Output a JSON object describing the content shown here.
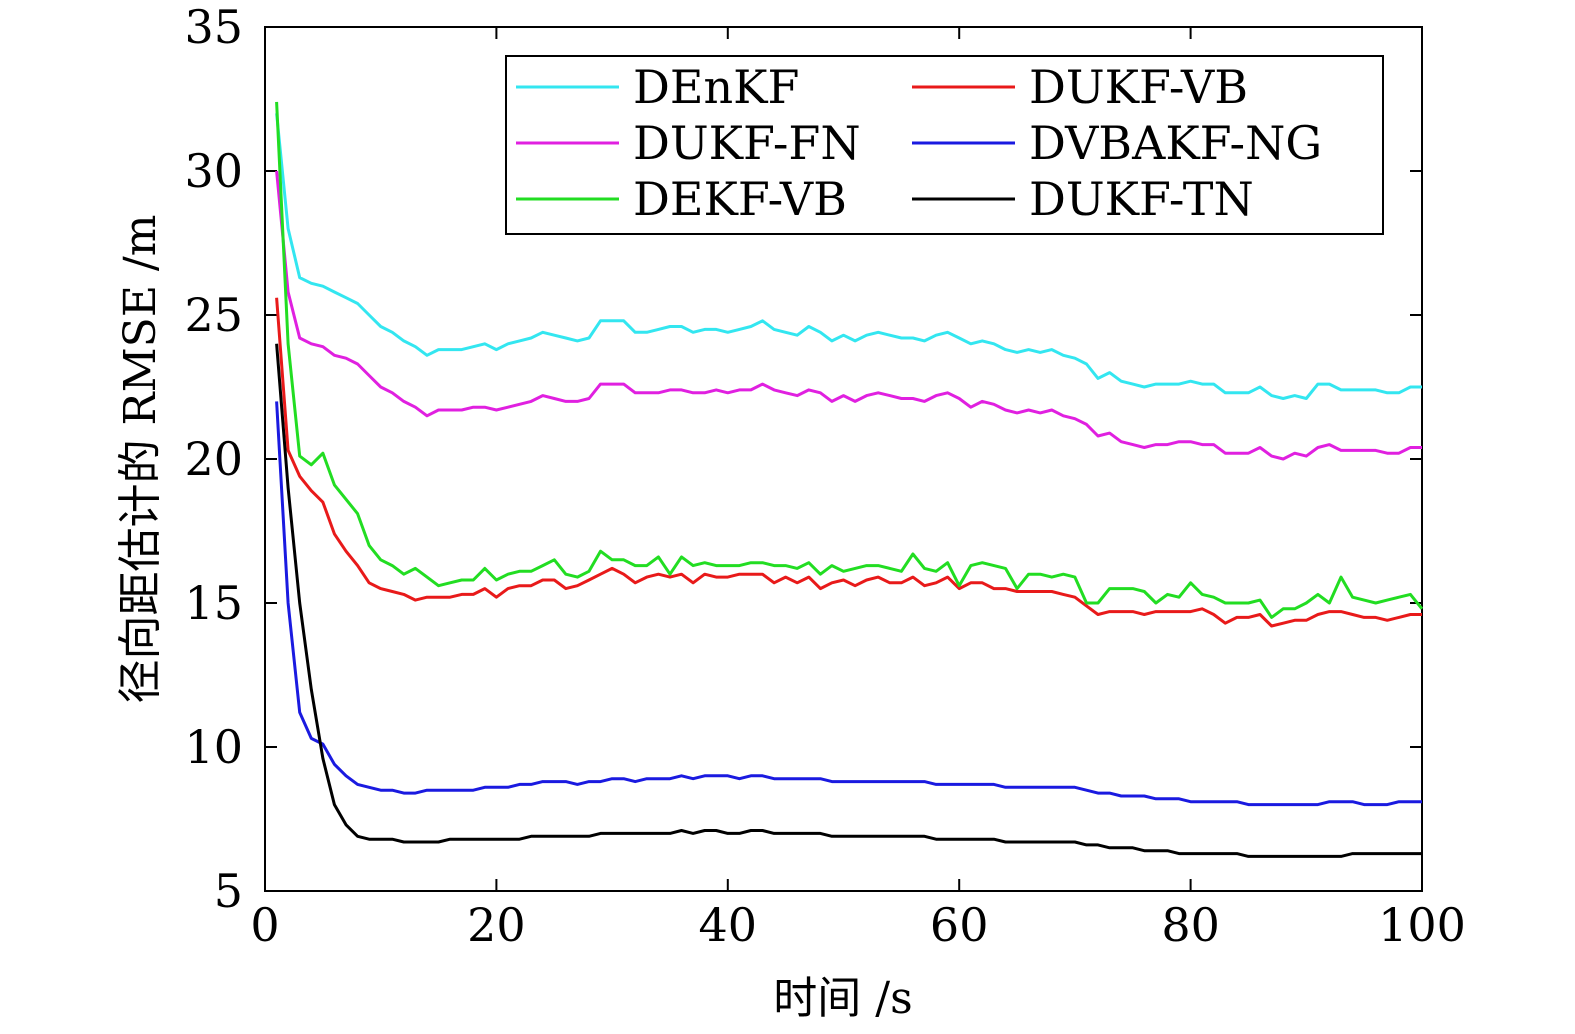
{
  "chart_data": {
    "type": "line",
    "xlabel": "时间 /s",
    "ylabel": "径向距估计的 RMSE /m",
    "xlim": [
      0,
      100
    ],
    "ylim": [
      5,
      35
    ],
    "xticks": [
      "0",
      "20",
      "40",
      "60",
      "80",
      "100"
    ],
    "yticks": [
      "5",
      "10",
      "15",
      "20",
      "25",
      "30",
      "35"
    ],
    "grid": false,
    "legend_position": "top-right",
    "x": [
      1,
      2,
      3,
      4,
      5,
      6,
      7,
      8,
      9,
      10,
      11,
      12,
      13,
      14,
      15,
      16,
      17,
      18,
      19,
      20,
      21,
      22,
      23,
      24,
      25,
      26,
      27,
      28,
      29,
      30,
      31,
      32,
      33,
      34,
      35,
      36,
      37,
      38,
      39,
      40,
      41,
      42,
      43,
      44,
      45,
      46,
      47,
      48,
      49,
      50,
      51,
      52,
      53,
      54,
      55,
      56,
      57,
      58,
      59,
      60,
      61,
      62,
      63,
      64,
      65,
      66,
      67,
      68,
      69,
      70,
      71,
      72,
      73,
      74,
      75,
      76,
      77,
      78,
      79,
      80,
      81,
      82,
      83,
      84,
      85,
      86,
      87,
      88,
      89,
      90,
      91,
      92,
      93,
      94,
      95,
      96,
      97,
      98,
      99,
      100
    ],
    "series": [
      {
        "name": "DEnKF",
        "color": "#33e6f0",
        "values": [
          32.0,
          28.0,
          26.3,
          26.1,
          26.0,
          25.8,
          25.6,
          25.4,
          25.0,
          24.6,
          24.4,
          24.1,
          23.9,
          23.6,
          23.8,
          23.8,
          23.8,
          23.9,
          24.0,
          23.8,
          24.0,
          24.1,
          24.2,
          24.4,
          24.3,
          24.2,
          24.1,
          24.2,
          24.8,
          24.8,
          24.8,
          24.4,
          24.4,
          24.5,
          24.6,
          24.6,
          24.4,
          24.5,
          24.5,
          24.4,
          24.5,
          24.6,
          24.8,
          24.5,
          24.4,
          24.3,
          24.6,
          24.4,
          24.1,
          24.3,
          24.1,
          24.3,
          24.4,
          24.3,
          24.2,
          24.2,
          24.1,
          24.3,
          24.4,
          24.2,
          24.0,
          24.1,
          24.0,
          23.8,
          23.7,
          23.8,
          23.7,
          23.8,
          23.6,
          23.5,
          23.3,
          22.8,
          23.0,
          22.7,
          22.6,
          22.5,
          22.6,
          22.6,
          22.6,
          22.7,
          22.6,
          22.6,
          22.3,
          22.3,
          22.3,
          22.5,
          22.2,
          22.1,
          22.2,
          22.1,
          22.6,
          22.6,
          22.4,
          22.4,
          22.4,
          22.4,
          22.3,
          22.3,
          22.5,
          22.5
        ]
      },
      {
        "name": "DUKF-VB",
        "color": "#e81a1a",
        "values": [
          25.6,
          20.3,
          19.4,
          18.9,
          18.5,
          17.4,
          16.8,
          16.3,
          15.7,
          15.5,
          15.4,
          15.3,
          15.1,
          15.2,
          15.2,
          15.2,
          15.3,
          15.3,
          15.5,
          15.2,
          15.5,
          15.6,
          15.6,
          15.8,
          15.8,
          15.5,
          15.6,
          15.8,
          16.0,
          16.2,
          16.0,
          15.7,
          15.9,
          16.0,
          15.9,
          16.0,
          15.7,
          16.0,
          15.9,
          15.9,
          16.0,
          16.0,
          16.0,
          15.7,
          15.9,
          15.7,
          15.9,
          15.5,
          15.7,
          15.8,
          15.6,
          15.8,
          15.9,
          15.7,
          15.7,
          15.9,
          15.6,
          15.7,
          15.9,
          15.5,
          15.7,
          15.7,
          15.5,
          15.5,
          15.4,
          15.4,
          15.4,
          15.4,
          15.3,
          15.2,
          14.9,
          14.6,
          14.7,
          14.7,
          14.7,
          14.6,
          14.7,
          14.7,
          14.7,
          14.7,
          14.8,
          14.6,
          14.3,
          14.5,
          14.5,
          14.6,
          14.2,
          14.3,
          14.4,
          14.4,
          14.6,
          14.7,
          14.7,
          14.6,
          14.5,
          14.5,
          14.4,
          14.5,
          14.6,
          14.6
        ]
      },
      {
        "name": "DUKF-FN",
        "color": "#e020e0",
        "values": [
          30.0,
          25.8,
          24.2,
          24.0,
          23.9,
          23.6,
          23.5,
          23.3,
          22.9,
          22.5,
          22.3,
          22.0,
          21.8,
          21.5,
          21.7,
          21.7,
          21.7,
          21.8,
          21.8,
          21.7,
          21.8,
          21.9,
          22.0,
          22.2,
          22.1,
          22.0,
          22.0,
          22.1,
          22.6,
          22.6,
          22.6,
          22.3,
          22.3,
          22.3,
          22.4,
          22.4,
          22.3,
          22.3,
          22.4,
          22.3,
          22.4,
          22.4,
          22.6,
          22.4,
          22.3,
          22.2,
          22.4,
          22.3,
          22.0,
          22.2,
          22.0,
          22.2,
          22.3,
          22.2,
          22.1,
          22.1,
          22.0,
          22.2,
          22.3,
          22.1,
          21.8,
          22.0,
          21.9,
          21.7,
          21.6,
          21.7,
          21.6,
          21.7,
          21.5,
          21.4,
          21.2,
          20.8,
          20.9,
          20.6,
          20.5,
          20.4,
          20.5,
          20.5,
          20.6,
          20.6,
          20.5,
          20.5,
          20.2,
          20.2,
          20.2,
          20.4,
          20.1,
          20.0,
          20.2,
          20.1,
          20.4,
          20.5,
          20.3,
          20.3,
          20.3,
          20.3,
          20.2,
          20.2,
          20.4,
          20.4
        ]
      },
      {
        "name": "DVBAKF-NG",
        "color": "#1a1ae0",
        "values": [
          22.0,
          15.0,
          11.2,
          10.3,
          10.1,
          9.4,
          9.0,
          8.7,
          8.6,
          8.5,
          8.5,
          8.4,
          8.4,
          8.5,
          8.5,
          8.5,
          8.5,
          8.5,
          8.6,
          8.6,
          8.6,
          8.7,
          8.7,
          8.8,
          8.8,
          8.8,
          8.7,
          8.8,
          8.8,
          8.9,
          8.9,
          8.8,
          8.9,
          8.9,
          8.9,
          9.0,
          8.9,
          9.0,
          9.0,
          9.0,
          8.9,
          9.0,
          9.0,
          8.9,
          8.9,
          8.9,
          8.9,
          8.9,
          8.8,
          8.8,
          8.8,
          8.8,
          8.8,
          8.8,
          8.8,
          8.8,
          8.8,
          8.7,
          8.7,
          8.7,
          8.7,
          8.7,
          8.7,
          8.6,
          8.6,
          8.6,
          8.6,
          8.6,
          8.6,
          8.6,
          8.5,
          8.4,
          8.4,
          8.3,
          8.3,
          8.3,
          8.2,
          8.2,
          8.2,
          8.1,
          8.1,
          8.1,
          8.1,
          8.1,
          8.0,
          8.0,
          8.0,
          8.0,
          8.0,
          8.0,
          8.0,
          8.1,
          8.1,
          8.1,
          8.0,
          8.0,
          8.0,
          8.1,
          8.1,
          8.1
        ]
      },
      {
        "name": "DEKF-VB",
        "color": "#22dd22",
        "values": [
          32.4,
          24.0,
          20.1,
          19.8,
          20.2,
          19.1,
          18.6,
          18.1,
          17.0,
          16.5,
          16.3,
          16.0,
          16.2,
          15.9,
          15.6,
          15.7,
          15.8,
          15.8,
          16.2,
          15.8,
          16.0,
          16.1,
          16.1,
          16.3,
          16.5,
          16.0,
          15.9,
          16.1,
          16.8,
          16.5,
          16.5,
          16.3,
          16.3,
          16.6,
          16.0,
          16.6,
          16.3,
          16.4,
          16.3,
          16.3,
          16.3,
          16.4,
          16.4,
          16.3,
          16.3,
          16.2,
          16.4,
          16.0,
          16.3,
          16.1,
          16.2,
          16.3,
          16.3,
          16.2,
          16.1,
          16.7,
          16.2,
          16.1,
          16.4,
          15.6,
          16.3,
          16.4,
          16.3,
          16.2,
          15.5,
          16.0,
          16.0,
          15.9,
          16.0,
          15.9,
          15.0,
          15.0,
          15.5,
          15.5,
          15.5,
          15.4,
          15.0,
          15.3,
          15.2,
          15.7,
          15.3,
          15.2,
          15.0,
          15.0,
          15.0,
          15.1,
          14.5,
          14.8,
          14.8,
          15.0,
          15.3,
          15.0,
          15.9,
          15.2,
          15.1,
          15.0,
          15.1,
          15.2,
          15.3,
          14.8
        ]
      },
      {
        "name": "DUKF-TN",
        "color": "#000000",
        "values": [
          24.0,
          19.0,
          15.0,
          12.0,
          9.6,
          8.0,
          7.3,
          6.9,
          6.8,
          6.8,
          6.8,
          6.7,
          6.7,
          6.7,
          6.7,
          6.8,
          6.8,
          6.8,
          6.8,
          6.8,
          6.8,
          6.8,
          6.9,
          6.9,
          6.9,
          6.9,
          6.9,
          6.9,
          7.0,
          7.0,
          7.0,
          7.0,
          7.0,
          7.0,
          7.0,
          7.1,
          7.0,
          7.1,
          7.1,
          7.0,
          7.0,
          7.1,
          7.1,
          7.0,
          7.0,
          7.0,
          7.0,
          7.0,
          6.9,
          6.9,
          6.9,
          6.9,
          6.9,
          6.9,
          6.9,
          6.9,
          6.9,
          6.8,
          6.8,
          6.8,
          6.8,
          6.8,
          6.8,
          6.7,
          6.7,
          6.7,
          6.7,
          6.7,
          6.7,
          6.7,
          6.6,
          6.6,
          6.5,
          6.5,
          6.5,
          6.4,
          6.4,
          6.4,
          6.3,
          6.3,
          6.3,
          6.3,
          6.3,
          6.3,
          6.2,
          6.2,
          6.2,
          6.2,
          6.2,
          6.2,
          6.2,
          6.2,
          6.2,
          6.3,
          6.3,
          6.3,
          6.3,
          6.3,
          6.3,
          6.3
        ]
      }
    ],
    "legend": {
      "columns": [
        [
          "DEnKF",
          "DUKF-FN",
          "DEKF-VB"
        ],
        [
          "DUKF-VB",
          "DVBAKF-NG",
          "DUKF-TN"
        ]
      ]
    }
  }
}
